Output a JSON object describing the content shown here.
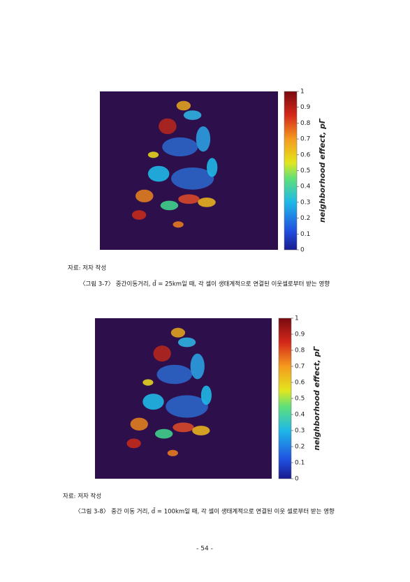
{
  "figures": [
    {
      "colorbar": {
        "label": "neighborhood effect, pΓ",
        "ticks": [
          0,
          0.1,
          0.2,
          0.3,
          0.4,
          0.5,
          0.6,
          0.7,
          0.8,
          0.9,
          1
        ]
      },
      "source": "자료: 저자 작성",
      "caption": "〈그림 3-7〉 중간이동거리, d̄ = 25km일 때, 각 셀이 생태계적으로 연결된 이웃셀로부터 받는 영향"
    },
    {
      "colorbar": {
        "label": "neighborhood effect, pΓ",
        "ticks": [
          0,
          0.1,
          0.2,
          0.3,
          0.4,
          0.5,
          0.6,
          0.7,
          0.8,
          0.9,
          1
        ]
      },
      "source": "자료: 저자 작성",
      "caption": "〈그림 3-8〉 중간 이동 거리, d̄ = 100km일 때, 각 셀이 생태계적으로 연결된 이웃 셀로부터 받는 영향"
    }
  ],
  "page_number": "- 54 -"
}
